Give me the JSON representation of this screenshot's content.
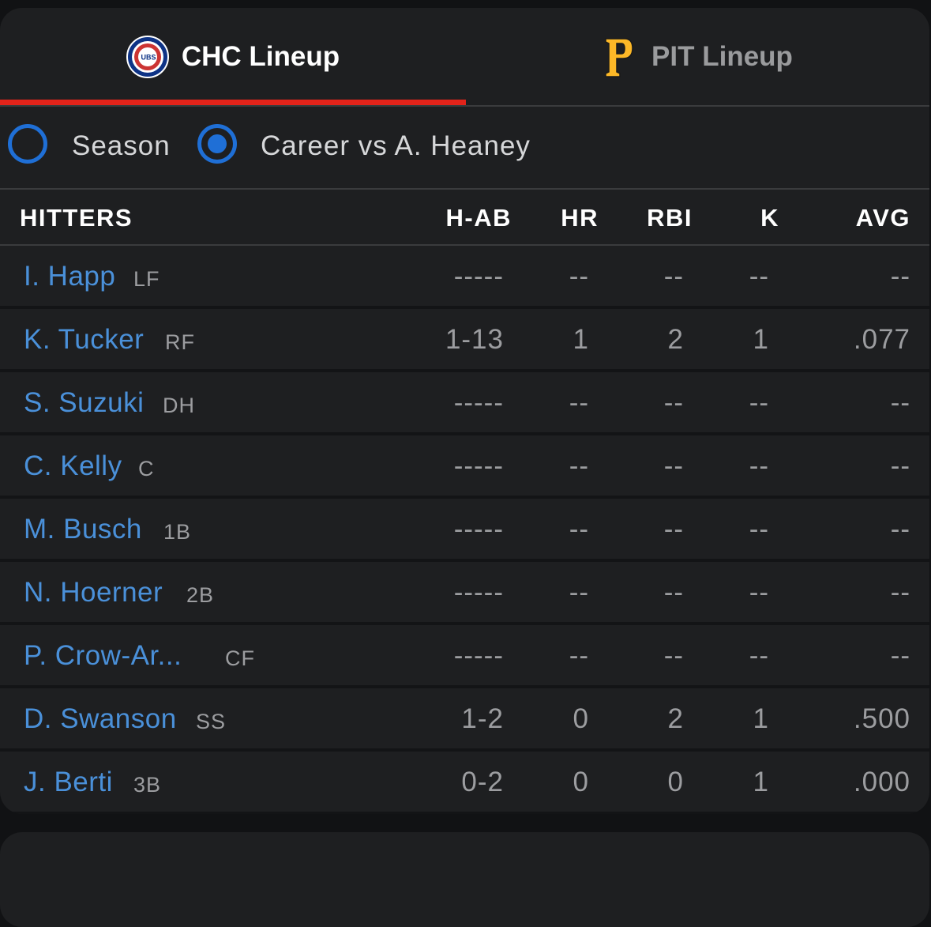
{
  "tabs": [
    {
      "label": "CHC Lineup",
      "active": true
    },
    {
      "label": "PIT Lineup",
      "active": false
    }
  ],
  "cubs_logo_text": "UBS",
  "toggle": {
    "season_label": "Season",
    "career_label": "Career vs A. Heaney",
    "selected": "career"
  },
  "headers": {
    "hitters": "HITTERS",
    "hab": "H-AB",
    "hr": "HR",
    "rbi": "RBI",
    "k": "K",
    "avg": "AVG"
  },
  "rows": [
    {
      "name": "I. Happ",
      "pos": "LF",
      "hab": "-----",
      "hr": "--",
      "rbi": "--",
      "k": "--",
      "avg": "--"
    },
    {
      "name": "K. Tucker",
      "pos": "RF",
      "hab": "1-13",
      "hr": "1",
      "rbi": "2",
      "k": "1",
      "avg": ".077"
    },
    {
      "name": "S. Suzuki",
      "pos": "DH",
      "hab": "-----",
      "hr": "--",
      "rbi": "--",
      "k": "--",
      "avg": "--"
    },
    {
      "name": "C. Kelly",
      "pos": "C",
      "hab": "-----",
      "hr": "--",
      "rbi": "--",
      "k": "--",
      "avg": "--"
    },
    {
      "name": "M. Busch",
      "pos": "1B",
      "hab": "-----",
      "hr": "--",
      "rbi": "--",
      "k": "--",
      "avg": "--"
    },
    {
      "name": "N. Hoerner",
      "pos": "2B",
      "hab": "-----",
      "hr": "--",
      "rbi": "--",
      "k": "--",
      "avg": "--"
    },
    {
      "name": "P. Crow-Ar...",
      "pos": "CF",
      "hab": "-----",
      "hr": "--",
      "rbi": "--",
      "k": "--",
      "avg": "--"
    },
    {
      "name": "D. Swanson",
      "pos": "SS",
      "hab": "1-2",
      "hr": "0",
      "rbi": "2",
      "k": "1",
      "avg": ".500"
    },
    {
      "name": "J. Berti",
      "pos": "3B",
      "hab": "0-2",
      "hr": "0",
      "rbi": "0",
      "k": "1",
      "avg": ".000"
    }
  ],
  "colors": {
    "accent_red": "#e2231a",
    "radio_blue": "#1f6fd6",
    "player_link": "#4a90d9",
    "pirates_gold": "#fdb827"
  }
}
